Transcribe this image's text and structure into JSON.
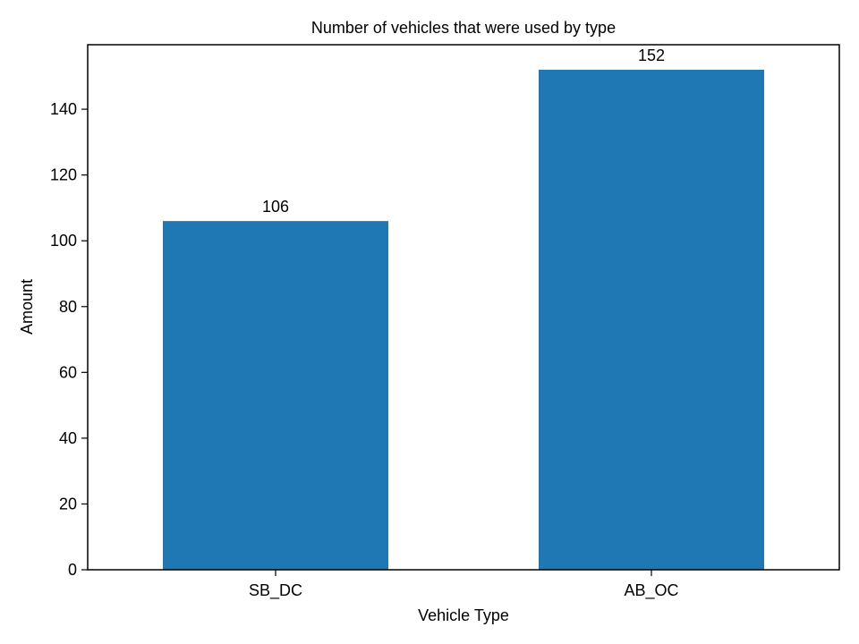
{
  "chart_data": {
    "type": "bar",
    "title": "Number of vehicles that were used by type",
    "xlabel": "Vehicle Type",
    "ylabel": "Amount",
    "categories": [
      "SB_DC",
      "AB_OC"
    ],
    "values": [
      106,
      152
    ],
    "data_labels": [
      "106",
      "152"
    ],
    "ylim": [
      0,
      159.6
    ],
    "yticks": [
      0,
      20,
      40,
      60,
      80,
      100,
      120,
      140
    ],
    "grid": false,
    "legend": "none",
    "bar_color": "#1f77b4"
  }
}
